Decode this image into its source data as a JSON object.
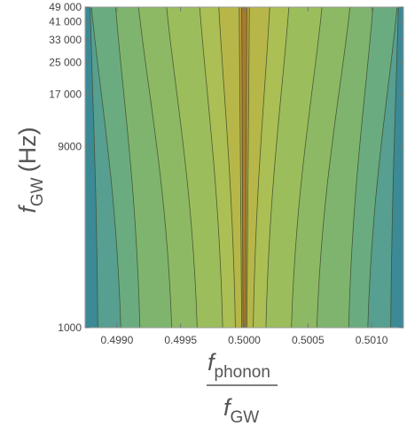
{
  "chart_data": {
    "type": "heatmap",
    "style": "contour",
    "x_axis": {
      "label_main": "f",
      "label_sub": "phonon",
      "label_den_main": "f",
      "label_den_sub": "GW",
      "range": [
        0.49875,
        0.50125
      ],
      "ticks": [
        {
          "value": 0.499,
          "label": "0.4990"
        },
        {
          "value": 0.4995,
          "label": "0.4995"
        },
        {
          "value": 0.5,
          "label": "0.5000"
        },
        {
          "value": 0.5005,
          "label": "0.5005"
        },
        {
          "value": 0.501,
          "label": "0.5010"
        }
      ]
    },
    "y_axis": {
      "label_main": "f",
      "label_sub": "GW",
      "label_unit": "(Hz)",
      "scale": "log",
      "range": [
        1000,
        49000
      ],
      "ticks": [
        {
          "value": 1000,
          "label": "1000"
        },
        {
          "value": 9000,
          "label": "9000"
        },
        {
          "value": 17000,
          "label": "17 000"
        },
        {
          "value": 25000,
          "label": "25 000"
        },
        {
          "value": 33000,
          "label": "33 000"
        },
        {
          "value": 41000,
          "label": "41 000"
        },
        {
          "value": 49000,
          "label": "49 000"
        }
      ]
    },
    "contour_boundaries": [
      {
        "x_bottom": 0.49885,
        "x_top": 0.49879
      },
      {
        "x_bottom": 0.49903,
        "x_top": 0.4988
      },
      {
        "x_bottom": 0.49918,
        "x_top": 0.49899
      },
      {
        "x_bottom": 0.49943,
        "x_top": 0.49917
      },
      {
        "x_bottom": 0.49963,
        "x_top": 0.49939
      },
      {
        "x_bottom": 0.49983,
        "x_top": 0.49965
      },
      {
        "x_bottom": 0.49993,
        "x_top": 0.4998
      },
      {
        "x_bottom": 0.49998,
        "x_top": 0.49996
      },
      {
        "x_bottom": 0.49999,
        "x_top": 0.49998
      },
      {
        "x_bottom": 0.50001,
        "x_top": 0.50002
      },
      {
        "x_bottom": 0.50002,
        "x_top": 0.50004
      },
      {
        "x_bottom": 0.50007,
        "x_top": 0.5002
      },
      {
        "x_bottom": 0.50017,
        "x_top": 0.50035
      },
      {
        "x_bottom": 0.50037,
        "x_top": 0.50061
      },
      {
        "x_bottom": 0.50057,
        "x_top": 0.50083
      },
      {
        "x_bottom": 0.50082,
        "x_top": 0.50101
      },
      {
        "x_bottom": 0.50097,
        "x_top": 0.5012
      },
      {
        "x_bottom": 0.50115,
        "x_top": 0.50121
      }
    ],
    "level_colors": [
      "#3b8a96",
      "#579f90",
      "#6aac7f",
      "#7fb46f",
      "#8db964",
      "#9cbd5c",
      "#abbf54",
      "#b6b748",
      "#bca13a",
      "#a97a2c",
      "#bca13a",
      "#b6b748",
      "#abbf54",
      "#9cbd5c",
      "#8db964",
      "#7fb46f",
      "#6aac7f",
      "#579f90",
      "#3b8a96"
    ],
    "contour_line_color": "#3d4a2a",
    "grid": false
  }
}
